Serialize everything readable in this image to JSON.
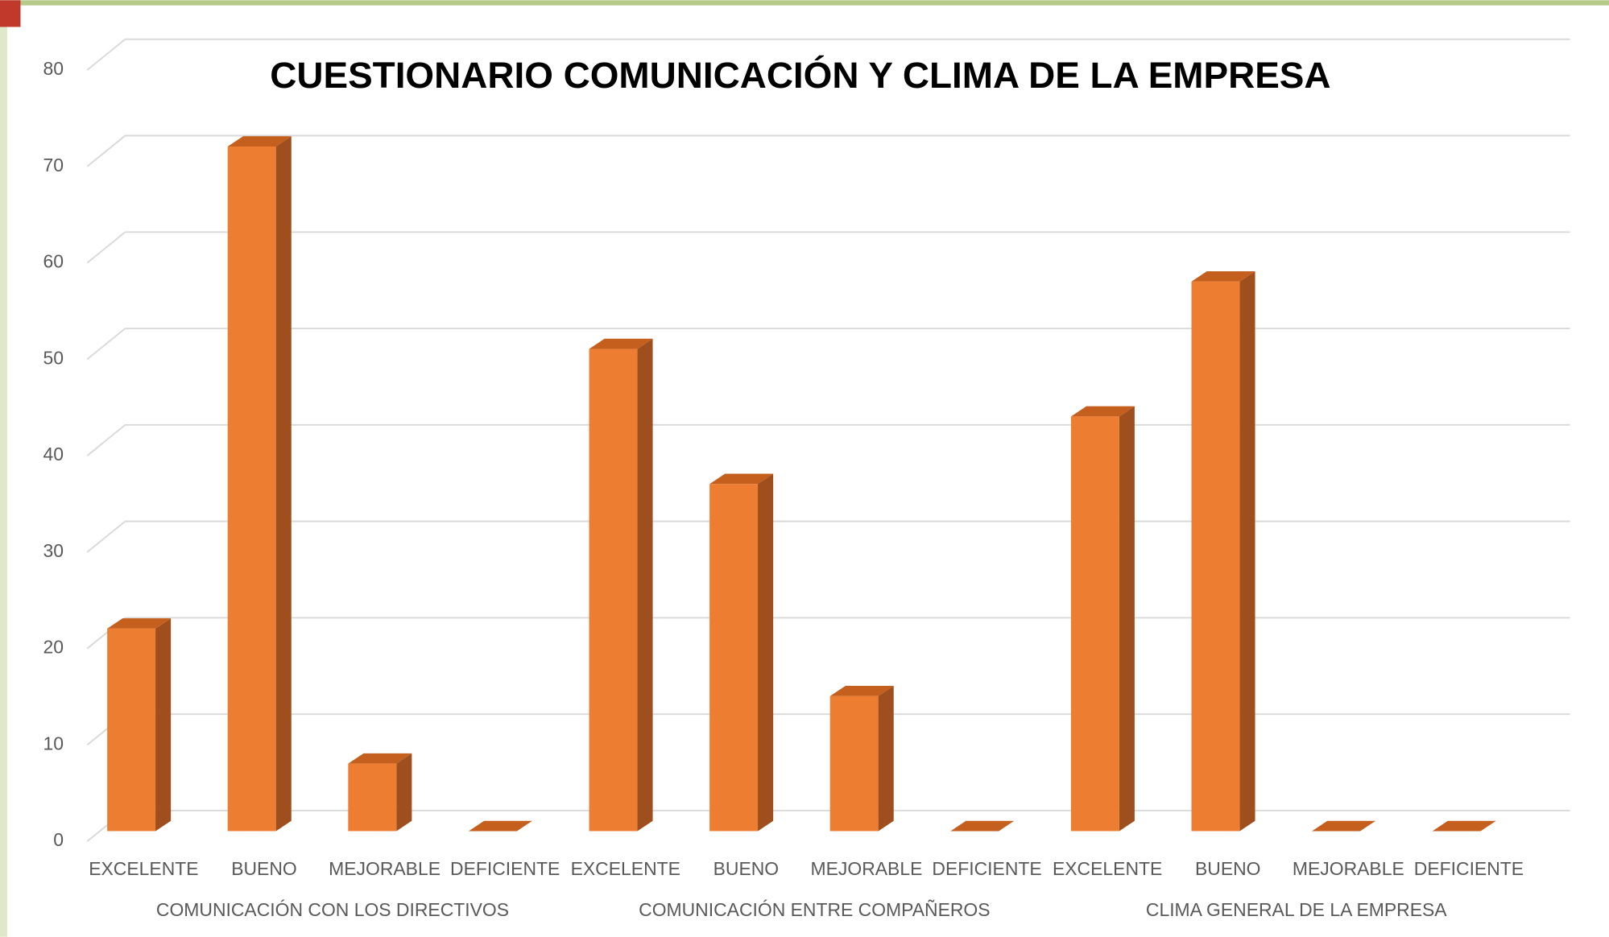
{
  "chart_data": {
    "type": "bar3d",
    "title": "CUESTIONARIO COMUNICACIÓN Y CLIMA DE LA EMPRESA",
    "categories": [
      "EXCELENTE",
      "BUENO",
      "MEJORABLE",
      "DEFICIENTE",
      "EXCELENTE",
      "BUENO",
      "MEJORABLE",
      "DEFICIENTE",
      "EXCELENTE",
      "BUENO",
      "MEJORABLE",
      "DEFICIENTE"
    ],
    "groups": [
      {
        "name": "COMUNICACIÓN CON LOS DIRECTIVOS",
        "size": 4
      },
      {
        "name": "COMUNICACIÓN ENTRE COMPAÑEROS",
        "size": 4
      },
      {
        "name": "CLIMA GENERAL DE LA EMPRESA",
        "size": 4
      }
    ],
    "values": [
      21,
      71,
      7,
      0,
      50,
      36,
      14,
      0,
      43,
      57,
      0,
      0
    ],
    "color": "#ed7d31",
    "ylim": [
      0,
      80
    ],
    "yticks": [
      0,
      10,
      20,
      30,
      40,
      50,
      60,
      70,
      80
    ],
    "grid": true
  }
}
